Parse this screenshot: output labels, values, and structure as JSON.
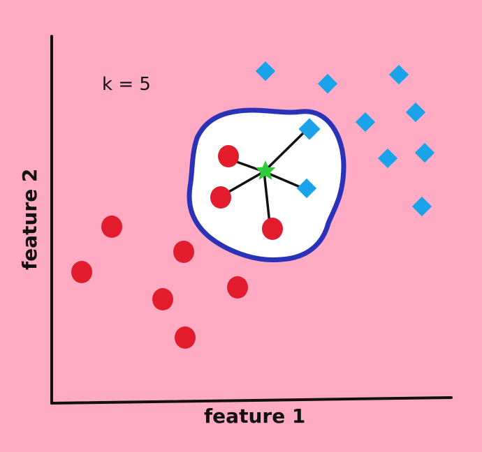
{
  "labels": {
    "k_label": "k = 5",
    "x_axis": "feature 1",
    "y_axis": "feature 2"
  },
  "colors": {
    "background": "#ffabc4",
    "class_a": "#e31c2d",
    "class_b": "#1aa3e8",
    "query": "#2ecc3a",
    "neighborhood_border": "#2a33b8",
    "neighborhood_fill": "#ffffff",
    "axis": "#111111"
  },
  "icons": {
    "class_a": "red-circle",
    "class_b": "blue-diamond",
    "query": "green-star"
  },
  "k": 5
}
